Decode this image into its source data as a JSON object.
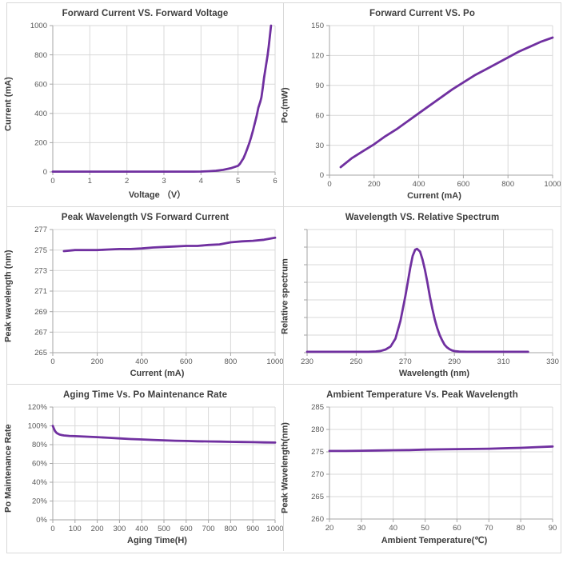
{
  "theme": {
    "line_color": "#7030A0",
    "grid_color": "#d9d9d9",
    "axis_color": "#a6a6a6",
    "tick_label_color": "#595959",
    "title_color": "#3d3d3d",
    "cell_border_color": "#d9d9d9",
    "background": "#ffffff"
  },
  "chart_data": [
    {
      "type": "line",
      "title": "Forward Current VS. Forward Voltage",
      "xlabel": "Voltage （V）",
      "ylabel": "Current (mA)",
      "xlim": [
        0,
        6
      ],
      "ylim": [
        0,
        1000
      ],
      "xticks": [
        0,
        1,
        2,
        3,
        4,
        5,
        6
      ],
      "xtick_labels": [
        "0",
        "1",
        "2",
        "3",
        "4",
        "5",
        "6"
      ],
      "yticks": [
        0,
        200,
        400,
        600,
        800,
        1000
      ],
      "ytick_labels": [
        "0",
        "200",
        "400",
        "600",
        "800",
        "1000"
      ],
      "grid": true,
      "legend": null,
      "points": [
        [
          0,
          2
        ],
        [
          0.5,
          2
        ],
        [
          1,
          2
        ],
        [
          1.5,
          2
        ],
        [
          2,
          2
        ],
        [
          2.5,
          2
        ],
        [
          3,
          2
        ],
        [
          3.5,
          2
        ],
        [
          3.8,
          2
        ],
        [
          4.0,
          3
        ],
        [
          4.2,
          5
        ],
        [
          4.4,
          8
        ],
        [
          4.6,
          14
        ],
        [
          4.8,
          25
        ],
        [
          5.0,
          42
        ],
        [
          5.05,
          55
        ],
        [
          5.1,
          75
        ],
        [
          5.15,
          95
        ],
        [
          5.2,
          125
        ],
        [
          5.25,
          160
        ],
        [
          5.3,
          195
        ],
        [
          5.35,
          235
        ],
        [
          5.4,
          280
        ],
        [
          5.45,
          330
        ],
        [
          5.5,
          380
        ],
        [
          5.55,
          440
        ],
        [
          5.6,
          480
        ],
        [
          5.63,
          510
        ],
        [
          5.67,
          580
        ],
        [
          5.7,
          640
        ],
        [
          5.75,
          720
        ],
        [
          5.8,
          800
        ],
        [
          5.83,
          860
        ],
        [
          5.86,
          930
        ],
        [
          5.89,
          1000
        ]
      ]
    },
    {
      "type": "line",
      "title": "Forward Current VS. Po",
      "xlabel": "Current (mA)",
      "ylabel": "Po.(mW)",
      "xlim": [
        0,
        1000
      ],
      "ylim": [
        0,
        150
      ],
      "xticks": [
        0,
        200,
        400,
        600,
        800,
        1000
      ],
      "xtick_labels": [
        "0",
        "200",
        "400",
        "600",
        "800",
        "1000"
      ],
      "yticks": [
        0,
        30,
        60,
        90,
        120,
        150
      ],
      "ytick_labels": [
        "0",
        "30",
        "60",
        "90",
        "120",
        "150"
      ],
      "grid": true,
      "legend": null,
      "points": [
        [
          50,
          8
        ],
        [
          100,
          17
        ],
        [
          150,
          24
        ],
        [
          200,
          31
        ],
        [
          250,
          39
        ],
        [
          300,
          46
        ],
        [
          350,
          54
        ],
        [
          400,
          62
        ],
        [
          450,
          70
        ],
        [
          500,
          78
        ],
        [
          550,
          86
        ],
        [
          600,
          93
        ],
        [
          650,
          100
        ],
        [
          700,
          106
        ],
        [
          750,
          112
        ],
        [
          800,
          118
        ],
        [
          850,
          124
        ],
        [
          900,
          129
        ],
        [
          950,
          134
        ],
        [
          1000,
          138
        ]
      ]
    },
    {
      "type": "line",
      "title": "Peak Wavelength VS Forward Current",
      "xlabel": "Current (mA)",
      "ylabel": "Peak wavelength (nm)",
      "xlim": [
        0,
        1000
      ],
      "ylim": [
        265,
        277
      ],
      "xticks": [
        0,
        200,
        400,
        600,
        800,
        1000
      ],
      "xtick_labels": [
        "0",
        "200",
        "400",
        "600",
        "800",
        "1000"
      ],
      "yticks": [
        265,
        267,
        269,
        271,
        273,
        275,
        277
      ],
      "ytick_labels": [
        "265",
        "267",
        "269",
        "271",
        "273",
        "275",
        "277"
      ],
      "grid": true,
      "legend": null,
      "points": [
        [
          50,
          274.9
        ],
        [
          100,
          275.0
        ],
        [
          150,
          275.0
        ],
        [
          200,
          275.0
        ],
        [
          250,
          275.05
        ],
        [
          300,
          275.1
        ],
        [
          350,
          275.1
        ],
        [
          400,
          275.15
        ],
        [
          450,
          275.25
        ],
        [
          500,
          275.3
        ],
        [
          550,
          275.35
        ],
        [
          600,
          275.4
        ],
        [
          650,
          275.4
        ],
        [
          700,
          275.5
        ],
        [
          750,
          275.55
        ],
        [
          800,
          275.75
        ],
        [
          850,
          275.85
        ],
        [
          900,
          275.9
        ],
        [
          950,
          276.0
        ],
        [
          1000,
          276.2
        ]
      ]
    },
    {
      "type": "line",
      "title": "Wavelength VS. Relative Spectrum",
      "xlabel": "Wavelength (nm)",
      "ylabel": "Relative spectrum",
      "xlim": [
        230,
        330
      ],
      "ylim": [
        0,
        7
      ],
      "xticks": [
        230,
        250,
        270,
        290,
        310,
        330
      ],
      "xtick_labels": [
        "230",
        "250",
        "270",
        "290",
        "310",
        "330"
      ],
      "yticks": [
        0,
        1,
        2,
        3,
        4,
        5,
        6,
        7
      ],
      "ytick_labels": null,
      "grid": true,
      "legend": null,
      "points": [
        [
          230,
          0.05
        ],
        [
          240,
          0.05
        ],
        [
          250,
          0.05
        ],
        [
          255,
          0.05
        ],
        [
          258,
          0.07
        ],
        [
          260,
          0.1
        ],
        [
          262,
          0.18
        ],
        [
          264,
          0.35
        ],
        [
          266,
          0.8
        ],
        [
          268,
          1.8
        ],
        [
          270,
          3.2
        ],
        [
          271,
          4.0
        ],
        [
          272,
          4.8
        ],
        [
          273,
          5.5
        ],
        [
          274,
          5.85
        ],
        [
          274.8,
          5.9
        ],
        [
          276,
          5.75
        ],
        [
          277,
          5.3
        ],
        [
          278,
          4.7
        ],
        [
          279,
          4.0
        ],
        [
          280,
          3.2
        ],
        [
          281,
          2.5
        ],
        [
          282,
          1.9
        ],
        [
          283,
          1.4
        ],
        [
          284,
          1.0
        ],
        [
          285,
          0.7
        ],
        [
          286,
          0.45
        ],
        [
          287,
          0.3
        ],
        [
          288,
          0.2
        ],
        [
          289,
          0.13
        ],
        [
          290,
          0.09
        ],
        [
          292,
          0.06
        ],
        [
          295,
          0.05
        ],
        [
          300,
          0.05
        ],
        [
          310,
          0.05
        ],
        [
          320,
          0.05
        ]
      ]
    },
    {
      "type": "line",
      "title": "Aging Time Vs. Po Maintenance Rate",
      "xlabel": "Aging Time(H)",
      "ylabel": "Po Maintenance Rate",
      "xlim": [
        0,
        1000
      ],
      "ylim": [
        0,
        120
      ],
      "xticks": [
        0,
        100,
        200,
        300,
        400,
        500,
        600,
        700,
        800,
        900,
        1000
      ],
      "xtick_labels": [
        "0",
        "100",
        "200",
        "300",
        "400",
        "500",
        "600",
        "700",
        "800",
        "900",
        "1000"
      ],
      "yticks": [
        0,
        20,
        40,
        60,
        80,
        100,
        120
      ],
      "ytick_labels": [
        "0%",
        "20%",
        "40%",
        "60%",
        "80%",
        "100%",
        "120%"
      ],
      "grid": true,
      "legend": null,
      "points": [
        [
          0,
          100
        ],
        [
          5,
          97
        ],
        [
          10,
          94.5
        ],
        [
          15,
          93
        ],
        [
          20,
          92
        ],
        [
          30,
          90.8
        ],
        [
          40,
          90.2
        ],
        [
          50,
          89.8
        ],
        [
          75,
          89.3
        ],
        [
          100,
          89
        ],
        [
          150,
          88.5
        ],
        [
          200,
          88
        ],
        [
          250,
          87.3
        ],
        [
          300,
          86.6
        ],
        [
          350,
          86
        ],
        [
          400,
          85.5
        ],
        [
          450,
          85
        ],
        [
          500,
          84.6
        ],
        [
          550,
          84.2
        ],
        [
          600,
          83.9
        ],
        [
          650,
          83.6
        ],
        [
          700,
          83.4
        ],
        [
          750,
          83.2
        ],
        [
          800,
          83
        ],
        [
          850,
          82.8
        ],
        [
          900,
          82.6
        ],
        [
          950,
          82.4
        ],
        [
          1000,
          82.2
        ]
      ]
    },
    {
      "type": "line",
      "title": "Ambient Temperature Vs. Peak Wavelength",
      "xlabel": "Ambient Temperature(℃)",
      "ylabel": "Peak Wavelength(nm)",
      "xlim": [
        20,
        90
      ],
      "ylim": [
        260,
        285
      ],
      "xticks": [
        20,
        30,
        40,
        50,
        60,
        70,
        80,
        90
      ],
      "xtick_labels": [
        "20",
        "30",
        "40",
        "50",
        "60",
        "70",
        "80",
        "90"
      ],
      "yticks": [
        260,
        265,
        270,
        275,
        280,
        285
      ],
      "ytick_labels": [
        "260",
        "265",
        "270",
        "275",
        "280",
        "285"
      ],
      "grid": true,
      "legend": null,
      "points": [
        [
          20,
          275.2
        ],
        [
          25,
          275.2
        ],
        [
          30,
          275.25
        ],
        [
          35,
          275.3
        ],
        [
          40,
          275.35
        ],
        [
          45,
          275.4
        ],
        [
          50,
          275.5
        ],
        [
          55,
          275.55
        ],
        [
          60,
          275.6
        ],
        [
          65,
          275.65
        ],
        [
          70,
          275.7
        ],
        [
          75,
          275.8
        ],
        [
          80,
          275.9
        ],
        [
          85,
          276.05
        ],
        [
          90,
          276.2
        ]
      ]
    }
  ]
}
